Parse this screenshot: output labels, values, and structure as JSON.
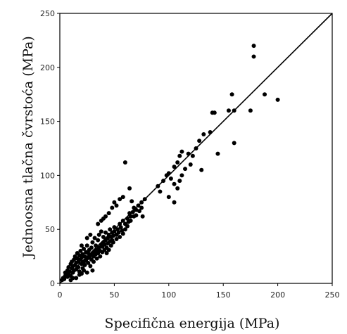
{
  "chart_data": {
    "type": "scatter",
    "title": "",
    "xlabel": "Specifična energija (MPa)",
    "ylabel": "Jednoosna tlačna čvrstoća (MPa)",
    "xlim": [
      0,
      250
    ],
    "ylim": [
      0,
      250
    ],
    "xticks": [
      0,
      50,
      100,
      150,
      200,
      250
    ],
    "yticks": [
      0,
      50,
      100,
      150,
      200,
      250
    ],
    "xtick_labels": [
      "0",
      "50",
      "100",
      "150",
      "200",
      "250"
    ],
    "ytick_labels": [
      "0",
      "50",
      "100",
      "150",
      "200",
      "250"
    ],
    "grid": false,
    "legend": "none",
    "fit_line": {
      "x": [
        0,
        250
      ],
      "y": [
        0,
        250
      ]
    },
    "points": [
      [
        2,
        3
      ],
      [
        3,
        5
      ],
      [
        4,
        4
      ],
      [
        5,
        7
      ],
      [
        5,
        10
      ],
      [
        6,
        8
      ],
      [
        7,
        12
      ],
      [
        7,
        6
      ],
      [
        8,
        15
      ],
      [
        8,
        9
      ],
      [
        9,
        11
      ],
      [
        10,
        18
      ],
      [
        10,
        7
      ],
      [
        11,
        14
      ],
      [
        11,
        20
      ],
      [
        12,
        16
      ],
      [
        12,
        10
      ],
      [
        13,
        22
      ],
      [
        13,
        12
      ],
      [
        14,
        17
      ],
      [
        14,
        25
      ],
      [
        15,
        19
      ],
      [
        15,
        13
      ],
      [
        16,
        23
      ],
      [
        16,
        28
      ],
      [
        17,
        15
      ],
      [
        17,
        20
      ],
      [
        18,
        26
      ],
      [
        18,
        11
      ],
      [
        19,
        22
      ],
      [
        19,
        30
      ],
      [
        20,
        18
      ],
      [
        20,
        24
      ],
      [
        21,
        27
      ],
      [
        21,
        14
      ],
      [
        22,
        20
      ],
      [
        22,
        32
      ],
      [
        23,
        25
      ],
      [
        23,
        17
      ],
      [
        24,
        29
      ],
      [
        24,
        21
      ],
      [
        25,
        23
      ],
      [
        25,
        35
      ],
      [
        26,
        19
      ],
      [
        26,
        28
      ],
      [
        27,
        31
      ],
      [
        27,
        24
      ],
      [
        28,
        26
      ],
      [
        28,
        16
      ],
      [
        29,
        33
      ],
      [
        29,
        22
      ],
      [
        30,
        28
      ],
      [
        30,
        38
      ],
      [
        31,
        25
      ],
      [
        31,
        20
      ],
      [
        32,
        30
      ],
      [
        32,
        42
      ],
      [
        33,
        27
      ],
      [
        33,
        35
      ],
      [
        34,
        23
      ],
      [
        34,
        31
      ],
      [
        35,
        40
      ],
      [
        35,
        28
      ],
      [
        36,
        33
      ],
      [
        36,
        45
      ],
      [
        37,
        30
      ],
      [
        37,
        25
      ],
      [
        38,
        36
      ],
      [
        38,
        48
      ],
      [
        39,
        34
      ],
      [
        39,
        29
      ],
      [
        40,
        38
      ],
      [
        40,
        43
      ],
      [
        41,
        31
      ],
      [
        41,
        36
      ],
      [
        42,
        40
      ],
      [
        42,
        47
      ],
      [
        43,
        33
      ],
      [
        43,
        28
      ],
      [
        44,
        42
      ],
      [
        44,
        37
      ],
      [
        45,
        45
      ],
      [
        45,
        31
      ],
      [
        46,
        39
      ],
      [
        46,
        50
      ],
      [
        47,
        43
      ],
      [
        47,
        35
      ],
      [
        48,
        47
      ],
      [
        48,
        40
      ],
      [
        49,
        44
      ],
      [
        49,
        38
      ],
      [
        50,
        48
      ],
      [
        50,
        52
      ],
      [
        52,
        45
      ],
      [
        52,
        41
      ],
      [
        53,
        50
      ],
      [
        54,
        47
      ],
      [
        55,
        55
      ],
      [
        55,
        43
      ],
      [
        56,
        52
      ],
      [
        57,
        49
      ],
      [
        58,
        58
      ],
      [
        58,
        46
      ],
      [
        60,
        55
      ],
      [
        60,
        50
      ],
      [
        62,
        60
      ],
      [
        62,
        53
      ],
      [
        63,
        57
      ],
      [
        64,
        65
      ],
      [
        65,
        62
      ],
      [
        65,
        58
      ],
      [
        67,
        66
      ],
      [
        68,
        62
      ],
      [
        68,
        70
      ],
      [
        70,
        68
      ],
      [
        70,
        63
      ],
      [
        72,
        72
      ],
      [
        73,
        67
      ],
      [
        75,
        75
      ],
      [
        75,
        70
      ],
      [
        76,
        62
      ],
      [
        78,
        78
      ],
      [
        35,
        55
      ],
      [
        38,
        58
      ],
      [
        40,
        60
      ],
      [
        42,
        62
      ],
      [
        45,
        65
      ],
      [
        48,
        70
      ],
      [
        50,
        75
      ],
      [
        52,
        72
      ],
      [
        55,
        78
      ],
      [
        58,
        80
      ],
      [
        60,
        112
      ],
      [
        64,
        88
      ],
      [
        66,
        76
      ],
      [
        25,
        42
      ],
      [
        28,
        45
      ],
      [
        20,
        35
      ],
      [
        30,
        12
      ],
      [
        25,
        10
      ],
      [
        20,
        9
      ],
      [
        15,
        5
      ],
      [
        18,
        8
      ],
      [
        22,
        12
      ],
      [
        10,
        3
      ],
      [
        12,
        5
      ],
      [
        90,
        90
      ],
      [
        92,
        85
      ],
      [
        95,
        95
      ],
      [
        98,
        100
      ],
      [
        100,
        102
      ],
      [
        102,
        97
      ],
      [
        105,
        108
      ],
      [
        108,
        112
      ],
      [
        110,
        118
      ],
      [
        112,
        122
      ],
      [
        105,
        92
      ],
      [
        108,
        88
      ],
      [
        110,
        95
      ],
      [
        112,
        100
      ],
      [
        100,
        80
      ],
      [
        105,
        75
      ],
      [
        120,
        110
      ],
      [
        115,
        106
      ],
      [
        118,
        120
      ],
      [
        122,
        118
      ],
      [
        125,
        125
      ],
      [
        130,
        105
      ],
      [
        128,
        132
      ],
      [
        132,
        138
      ],
      [
        138,
        140
      ],
      [
        140,
        158
      ],
      [
        142,
        158
      ],
      [
        145,
        120
      ],
      [
        155,
        160
      ],
      [
        158,
        175
      ],
      [
        160,
        160
      ],
      [
        160,
        130
      ],
      [
        175,
        160
      ],
      [
        178,
        220
      ],
      [
        178,
        210
      ],
      [
        188,
        175
      ],
      [
        200,
        170
      ]
    ]
  }
}
